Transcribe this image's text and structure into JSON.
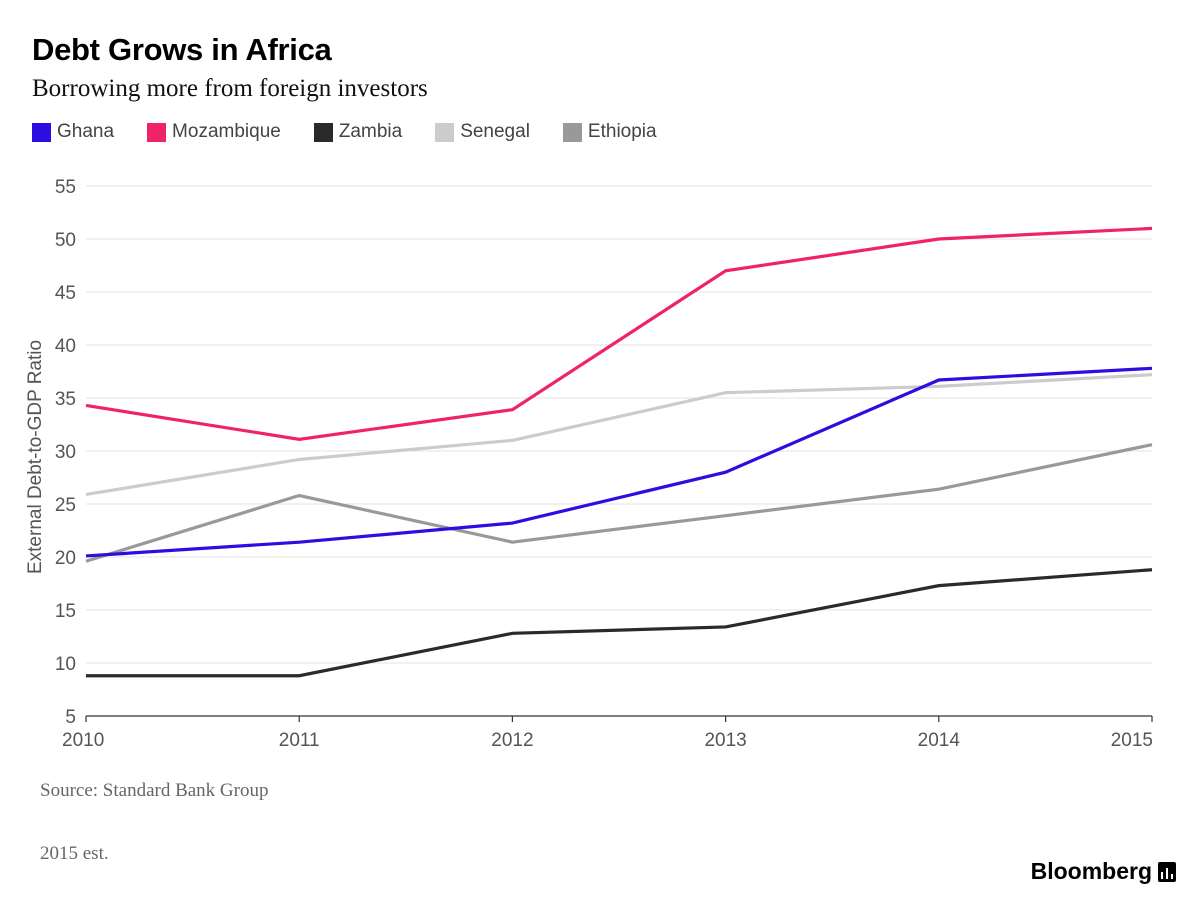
{
  "header": {
    "title": "Debt Grows in Africa",
    "subtitle": "Borrowing more from foreign investors"
  },
  "footer": {
    "source": "Source: Standard Bank Group",
    "note": "2015 est.",
    "brand": "Bloomberg"
  },
  "chart_data": {
    "type": "line",
    "title": "Debt Grows in Africa",
    "subtitle": "Borrowing more from foreign investors",
    "xlabel": "",
    "ylabel": "External Debt-to-GDP Ratio",
    "x": [
      "2010",
      "2011",
      "2012",
      "2013",
      "2014",
      "2015"
    ],
    "ylim": [
      5,
      55
    ],
    "yticks": [
      5,
      10,
      15,
      20,
      25,
      30,
      35,
      40,
      45,
      50,
      55
    ],
    "grid": true,
    "legend_position": "top-left",
    "series": [
      {
        "name": "Ghana",
        "color": "#2c0fe0",
        "values": [
          20.1,
          21.4,
          23.2,
          28.0,
          36.7,
          37.8
        ]
      },
      {
        "name": "Mozambique",
        "color": "#f0236a",
        "values": [
          34.3,
          31.1,
          33.9,
          47.0,
          50.0,
          51.0
        ]
      },
      {
        "name": "Zambia",
        "color": "#2a2a2a",
        "values": [
          8.8,
          8.8,
          12.8,
          13.4,
          17.3,
          18.8
        ]
      },
      {
        "name": "Senegal",
        "color": "#cccccc",
        "values": [
          25.9,
          29.2,
          31.0,
          35.5,
          36.1,
          37.2
        ]
      },
      {
        "name": "Ethiopia",
        "color": "#999999",
        "values": [
          19.6,
          25.8,
          21.4,
          23.9,
          26.4,
          30.6
        ]
      }
    ]
  }
}
